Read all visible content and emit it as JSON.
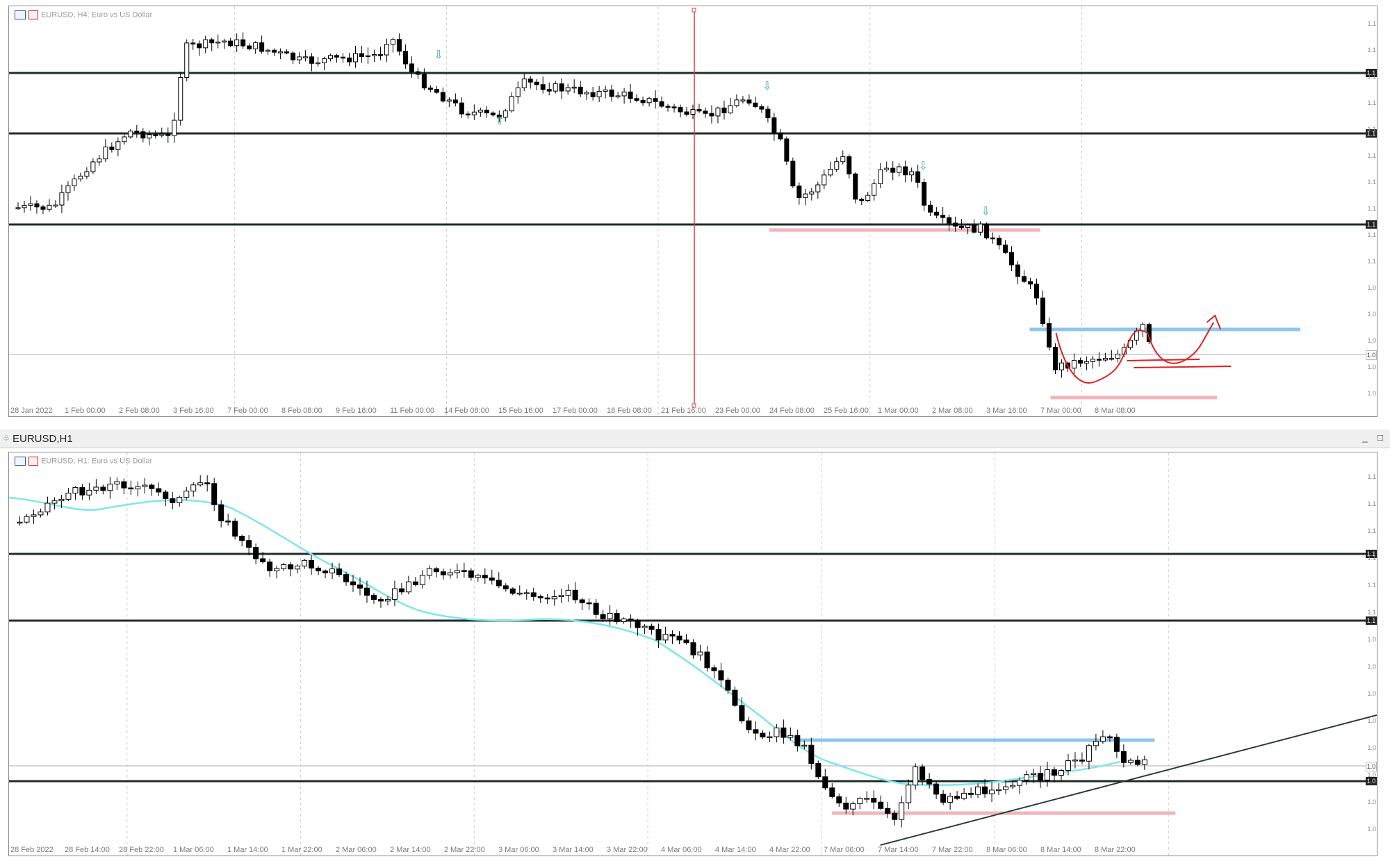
{
  "top_pane": {
    "label": "EURUSD, H4:  Euro vs US Dollar",
    "x_labels": [
      "28 Jan 2022",
      "1 Feb 00:00",
      "2 Feb 08:00",
      "3 Feb 16:00",
      "7 Feb 00:00",
      "8 Feb 08:00",
      "9 Feb 16:00",
      "11 Feb 00:00",
      "14 Feb 08:00",
      "15 Feb 16:00",
      "17 Feb 00:00",
      "18 Feb 08:00",
      "21 Feb 16:00",
      "23 Feb 00:00",
      "24 Feb 08:00",
      "25 Feb 16:00",
      "1 Mar 00:00",
      "2 Mar 08:00",
      "3 Mar 16:00",
      "7 Mar 00:00",
      "8 Mar 08:00"
    ],
    "price_tags": [
      "1.1",
      "1.1",
      "1.1",
      "1.0"
    ],
    "y_ticks": [
      "1.1",
      "1.1",
      "1.1",
      "1.1",
      "1.1",
      "1.1",
      "1.1",
      "1.1",
      "1.1",
      "1.1",
      "1.0",
      "1.0",
      "1.0",
      "1.0",
      "1.0"
    ]
  },
  "bottom_pane": {
    "window_title": "EURUSD,H1",
    "label": "EURUSD, H1:  Euro vs US Dollar",
    "x_labels": [
      "28 Feb 2022",
      "28 Feb 14:00",
      "28 Feb 22:00",
      "1 Mar 06:00",
      "1 Mar 14:00",
      "1 Mar 22:00",
      "2 Mar 06:00",
      "2 Mar 14:00",
      "2 Mar 22:00",
      "3 Mar 06:00",
      "3 Mar 14:00",
      "3 Mar 22:00",
      "4 Mar 06:00",
      "4 Mar 14:00",
      "4 Mar 22:00",
      "7 Mar 06:00",
      "7 Mar 14:00",
      "7 Mar 22:00",
      "8 Mar 06:00",
      "8 Mar 14:00",
      "8 Mar 22:00"
    ],
    "price_tags": [
      "1.1",
      "1.1",
      "1.0",
      "1.0"
    ],
    "y_ticks": [
      "1.1",
      "1.1",
      "1.1",
      "1.1",
      "1.1",
      "1.1",
      "1.0",
      "1.0",
      "1.0",
      "1.0",
      "1.0",
      "1.0",
      "1.0",
      "1.0"
    ]
  },
  "window_buttons": {
    "minimize": "_",
    "maximize": "□"
  },
  "colors": {
    "level_line": "#1f2d2a",
    "support_pink": "#f2b4bc",
    "resistance_blue": "#8ec5ea",
    "ma_cyan": "#7fe6ee",
    "drawing_red": "#e02020",
    "trend_line": "#2a3a3a",
    "vline_red": "#d84040",
    "arrow_teal": "#3aa8a8"
  },
  "icons": [
    "chart-icon",
    "bars-icon",
    "arrow-down-icon",
    "arrow-up-icon"
  ]
}
